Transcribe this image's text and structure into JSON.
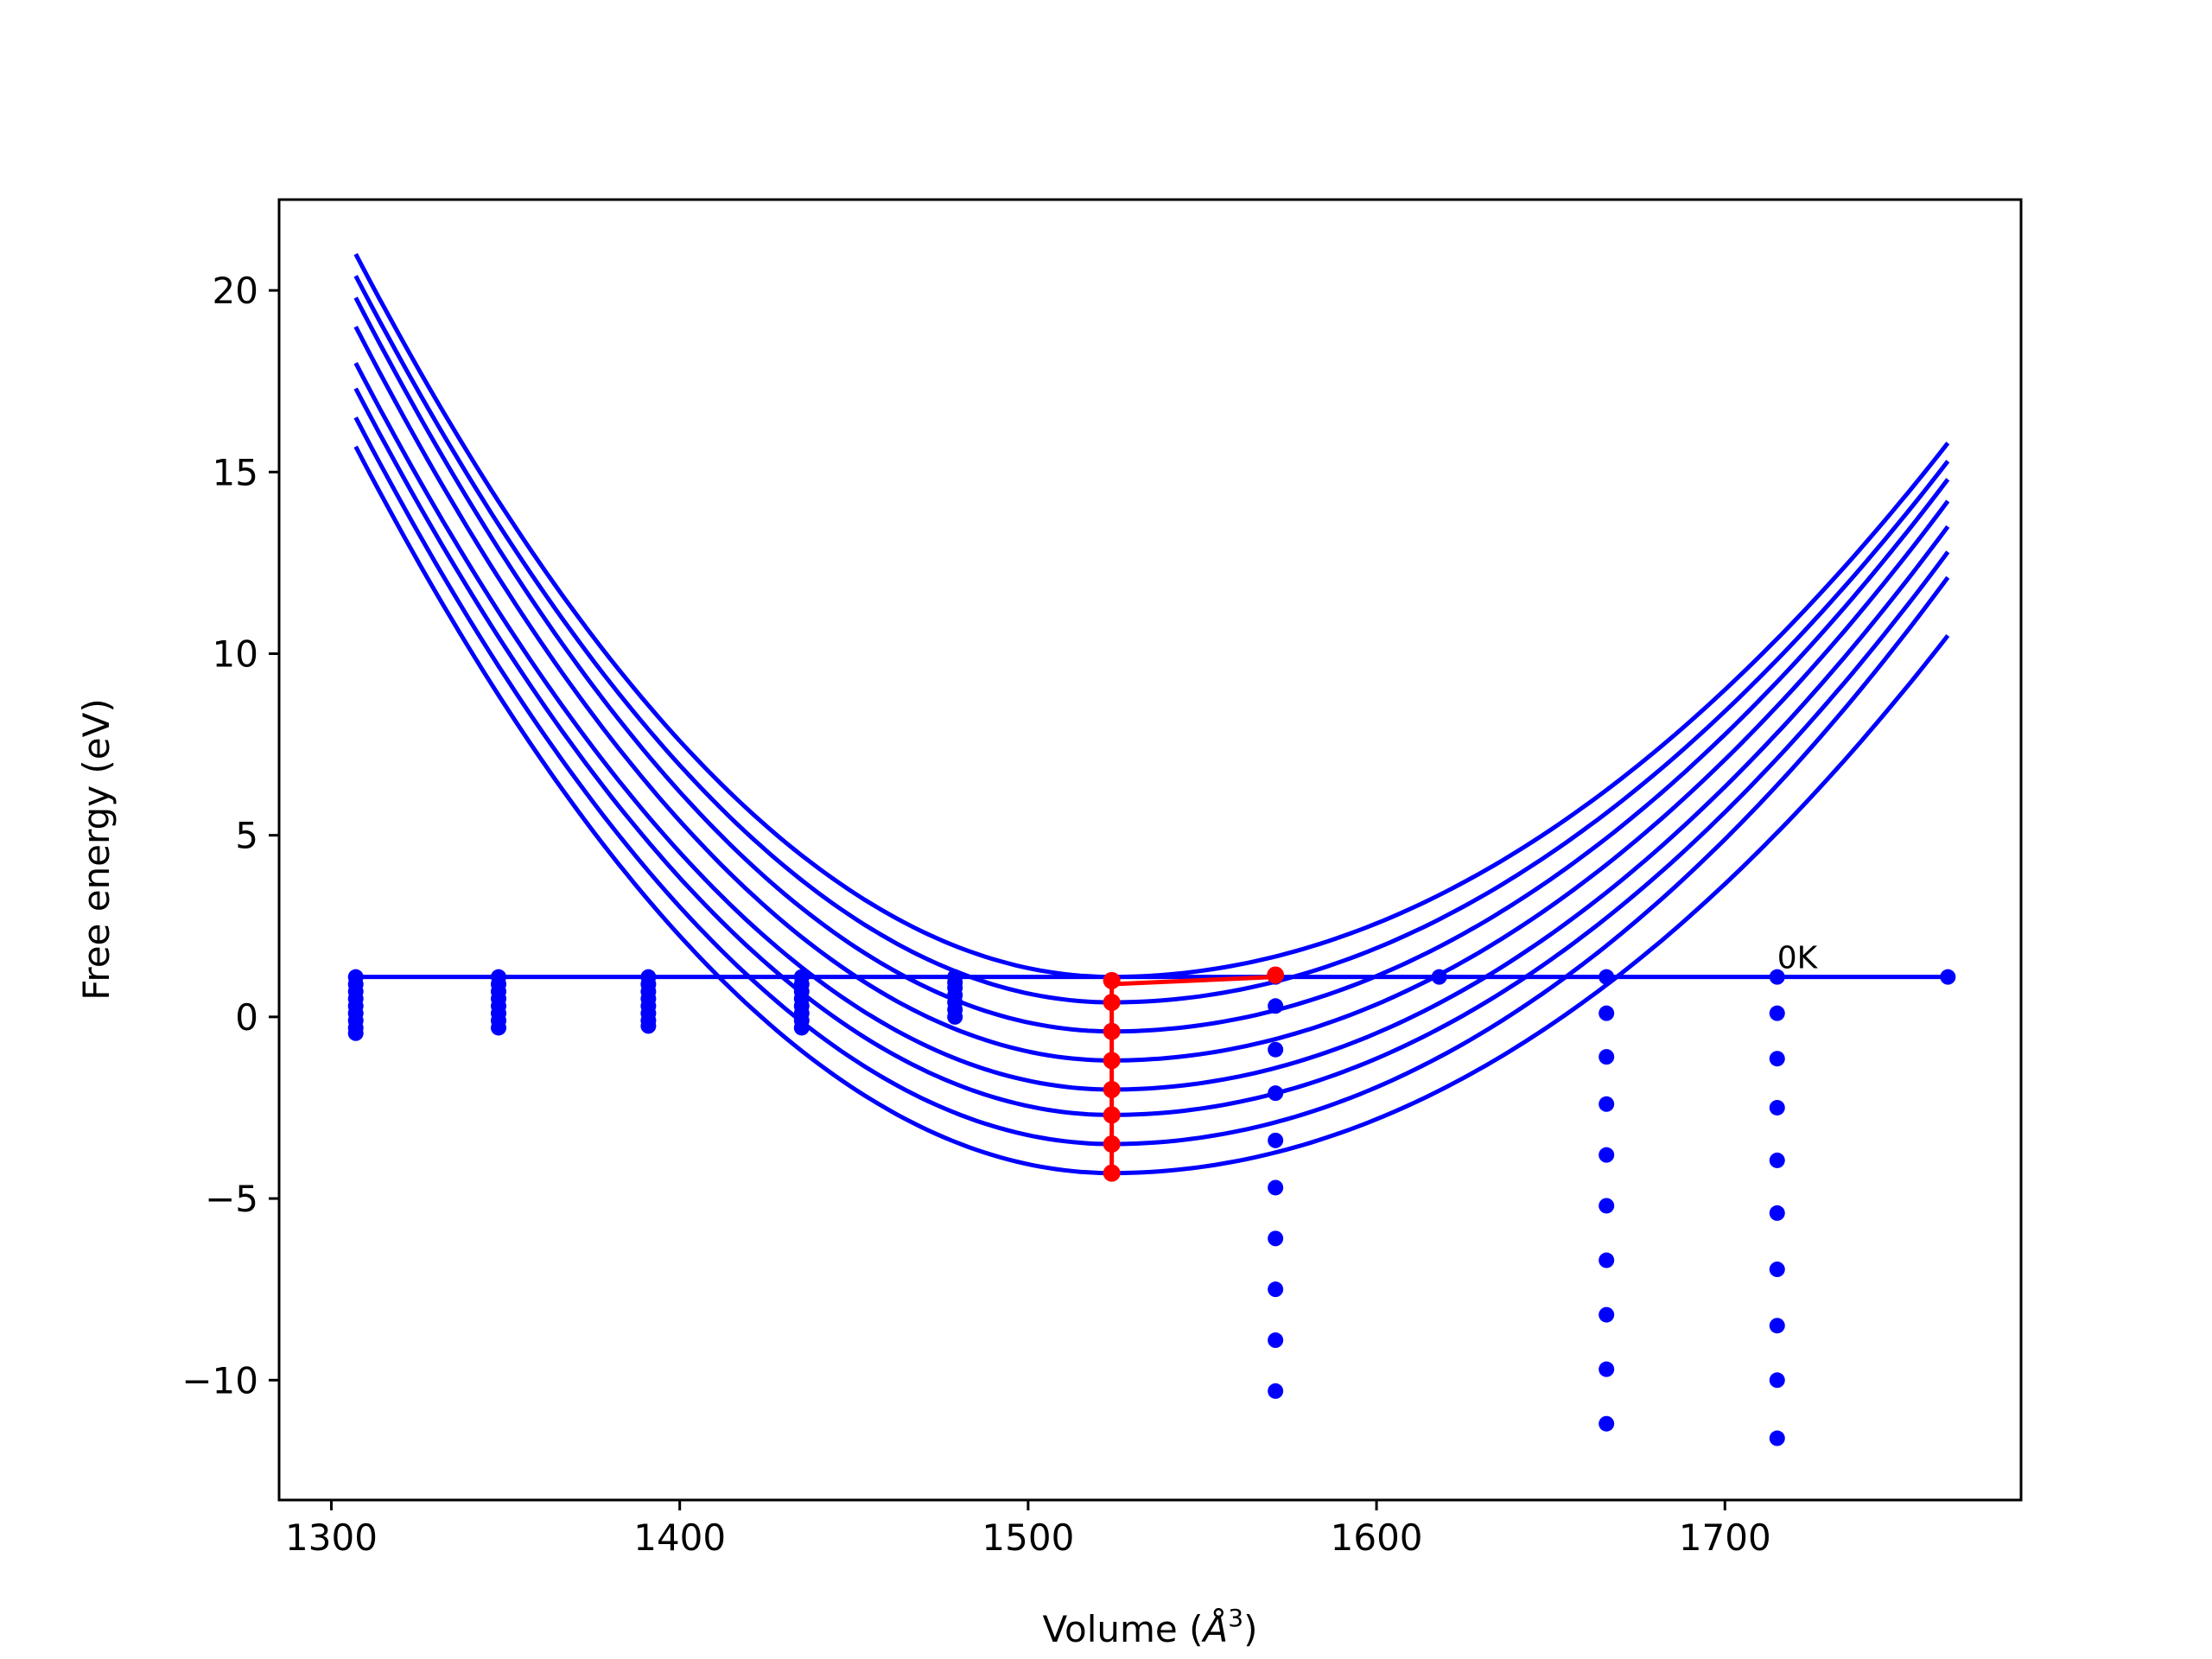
{
  "chart_data": {
    "type": "line",
    "title": "",
    "xlabel_text": "Volume (",
    "xlabel_unit": "Å",
    "xlabel_exp": "3",
    "xlabel_close": ")",
    "ylabel": "Free energy (eV)",
    "xlim": [
      1285,
      1785
    ],
    "ylim": [
      -13.3,
      22.5
    ],
    "xticks": [
      1300,
      1400,
      1500,
      1600,
      1700
    ],
    "yticks": [
      -10,
      -5,
      0,
      5,
      10,
      15,
      20
    ],
    "ytick_labels": [
      "−10",
      "−5",
      "0",
      "5",
      "10",
      "15",
      "20"
    ],
    "grid": false,
    "legend": "none",
    "colors": {
      "curves": "#0000ff",
      "path": "#ff0000",
      "axes": "#000000"
    },
    "annotation": {
      "text": "0K",
      "x": 1715,
      "y": 1.2
    },
    "curves": {
      "x_range": [
        1307,
        1764
      ],
      "minimum_volume": 1524,
      "series": [
        {
          "min": 1.1,
          "left_end": 21.0,
          "right_end": 15.8
        },
        {
          "min": 0.4,
          "left_end": 20.4,
          "right_end": 15.3
        },
        {
          "min": -0.4,
          "left_end": 19.8,
          "right_end": 14.8
        },
        {
          "min": -1.2,
          "left_end": 19.0,
          "right_end": 14.2
        },
        {
          "min": -2.0,
          "left_end": 18.0,
          "right_end": 13.5
        },
        {
          "min": -2.7,
          "left_end": 17.3,
          "right_end": 12.8
        },
        {
          "min": -3.5,
          "left_end": 16.5,
          "right_end": 12.1
        },
        {
          "min": -4.3,
          "left_end": 15.7,
          "right_end": 10.5
        }
      ]
    },
    "horizontal_line": {
      "x": [
        1307,
        1348,
        1391,
        1435,
        1479,
        1524,
        1571,
        1618,
        1666,
        1715,
        1764
      ],
      "y": [
        1.1,
        1.1,
        1.1,
        1.1,
        1.1,
        1.1,
        1.1,
        1.1,
        1.1,
        1.1,
        1.1
      ]
    },
    "point_columns": [
      {
        "x": 1307,
        "y": [
          1.1,
          0.9,
          0.7,
          0.5,
          0.3,
          0.1,
          -0.1,
          -0.3,
          -0.45
        ]
      },
      {
        "x": 1348,
        "y": [
          1.1,
          0.9,
          0.7,
          0.5,
          0.3,
          0.1,
          -0.1,
          -0.3
        ]
      },
      {
        "x": 1391,
        "y": [
          1.1,
          0.9,
          0.7,
          0.5,
          0.3,
          0.1,
          -0.1,
          -0.25
        ]
      },
      {
        "x": 1435,
        "y": [
          1.1,
          0.9,
          0.7,
          0.5,
          0.3,
          0.1,
          -0.1,
          -0.3
        ]
      },
      {
        "x": 1479,
        "y": [
          1.1,
          0.95,
          0.8,
          0.6,
          0.4,
          0.2,
          0.0
        ]
      },
      {
        "x": 1571,
        "y": [
          1.1,
          0.3,
          -0.9,
          -2.1,
          -3.4,
          -4.7,
          -6.1,
          -7.5,
          -8.9,
          -10.3
        ]
      },
      {
        "x": 1618,
        "y": [
          1.1
        ]
      },
      {
        "x": 1666,
        "y": [
          1.1,
          0.1,
          -1.1,
          -2.4,
          -3.8,
          -5.2,
          -6.7,
          -8.2,
          -9.7,
          -11.2
        ]
      },
      {
        "x": 1715,
        "y": [
          1.1,
          0.1,
          -1.15,
          -2.5,
          -3.95,
          -5.4,
          -6.95,
          -8.5,
          -10.0,
          -11.6
        ]
      },
      {
        "x": 1764,
        "y": [
          1.1
        ]
      }
    ],
    "minimum_path": {
      "x": [
        1571,
        1524,
        1524,
        1524,
        1524,
        1524,
        1524,
        1524,
        1524,
        1524
      ],
      "y": [
        1.1,
        0.9,
        0.4,
        -0.4,
        -1.2,
        -2.0,
        -2.7,
        -3.5,
        -4.3,
        -4.3
      ]
    },
    "minimum_points": [
      {
        "x": 1571,
        "y": 1.15
      },
      {
        "x": 1524,
        "y": 1.0
      },
      {
        "x": 1524,
        "y": 0.4
      },
      {
        "x": 1524,
        "y": -0.4
      },
      {
        "x": 1524,
        "y": -1.2
      },
      {
        "x": 1524,
        "y": -2.0
      },
      {
        "x": 1524,
        "y": -2.7
      },
      {
        "x": 1524,
        "y": -3.5
      },
      {
        "x": 1524,
        "y": -4.3
      }
    ]
  }
}
